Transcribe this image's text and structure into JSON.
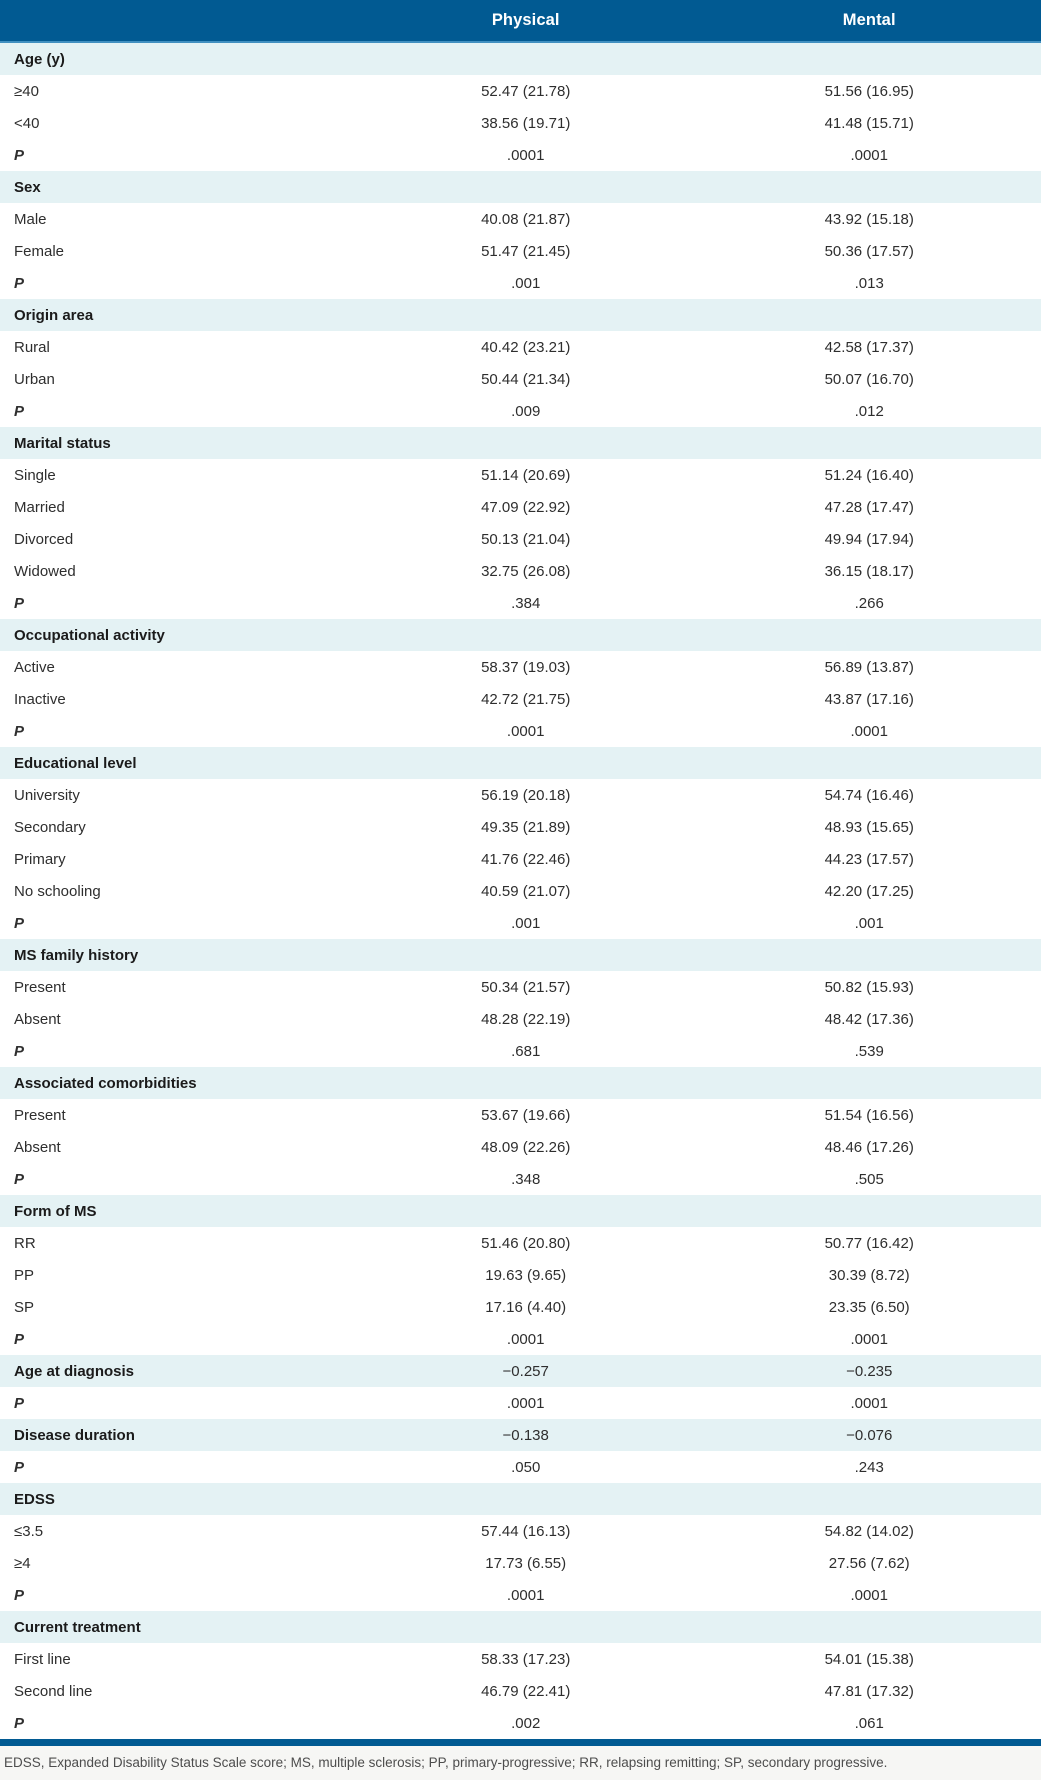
{
  "header": {
    "physical": "Physical",
    "mental": "Mental"
  },
  "sections": [
    {
      "title": "Age (y)",
      "rows": [
        {
          "type": "data",
          "label": "≥40",
          "physical": "52.47 (21.78)",
          "mental": "51.56 (16.95)"
        },
        {
          "type": "data",
          "label": "<40",
          "physical": "38.56 (19.71)",
          "mental": "41.48 (15.71)"
        },
        {
          "type": "p",
          "label": "P",
          "physical": ".0001",
          "mental": ".0001"
        }
      ]
    },
    {
      "title": "Sex",
      "rows": [
        {
          "type": "data",
          "label": "Male",
          "physical": "40.08 (21.87)",
          "mental": "43.92 (15.18)"
        },
        {
          "type": "data",
          "label": "Female",
          "physical": "51.47 (21.45)",
          "mental": "50.36 (17.57)"
        },
        {
          "type": "p",
          "label": "P",
          "physical": ".001",
          "mental": ".013"
        }
      ]
    },
    {
      "title": "Origin area",
      "rows": [
        {
          "type": "data",
          "label": "Rural",
          "physical": "40.42 (23.21)",
          "mental": "42.58 (17.37)"
        },
        {
          "type": "data",
          "label": "Urban",
          "physical": "50.44 (21.34)",
          "mental": "50.07 (16.70)"
        },
        {
          "type": "p",
          "label": "P",
          "physical": ".009",
          "mental": ".012"
        }
      ]
    },
    {
      "title": "Marital status",
      "rows": [
        {
          "type": "data",
          "label": "Single",
          "physical": "51.14 (20.69)",
          "mental": "51.24 (16.40)"
        },
        {
          "type": "data",
          "label": "Married",
          "physical": "47.09 (22.92)",
          "mental": "47.28 (17.47)"
        },
        {
          "type": "data",
          "label": "Divorced",
          "physical": "50.13 (21.04)",
          "mental": "49.94 (17.94)"
        },
        {
          "type": "data",
          "label": "Widowed",
          "physical": "32.75 (26.08)",
          "mental": "36.15 (18.17)"
        },
        {
          "type": "p",
          "label": "P",
          "physical": ".384",
          "mental": ".266"
        }
      ]
    },
    {
      "title": "Occupational activity",
      "rows": [
        {
          "type": "data",
          "label": "Active",
          "physical": "58.37 (19.03)",
          "mental": "56.89 (13.87)"
        },
        {
          "type": "data",
          "label": "Inactive",
          "physical": "42.72 (21.75)",
          "mental": "43.87 (17.16)"
        },
        {
          "type": "p",
          "label": "P",
          "physical": ".0001",
          "mental": ".0001"
        }
      ]
    },
    {
      "title": "Educational level",
      "rows": [
        {
          "type": "data",
          "label": "University",
          "physical": "56.19 (20.18)",
          "mental": "54.74 (16.46)"
        },
        {
          "type": "data",
          "label": "Secondary",
          "physical": "49.35 (21.89)",
          "mental": "48.93 (15.65)"
        },
        {
          "type": "data",
          "label": "Primary",
          "physical": "41.76 (22.46)",
          "mental": "44.23 (17.57)"
        },
        {
          "type": "data",
          "label": "No schooling",
          "physical": "40.59 (21.07)",
          "mental": "42.20 (17.25)"
        },
        {
          "type": "p",
          "label": "P",
          "physical": ".001",
          "mental": ".001"
        }
      ]
    },
    {
      "title": "MS family history",
      "rows": [
        {
          "type": "data",
          "label": "Present",
          "physical": "50.34 (21.57)",
          "mental": "50.82 (15.93)"
        },
        {
          "type": "data",
          "label": "Absent",
          "physical": "48.28 (22.19)",
          "mental": "48.42 (17.36)"
        },
        {
          "type": "p",
          "label": "P",
          "physical": ".681",
          "mental": ".539"
        }
      ]
    },
    {
      "title": "Associated comorbidities",
      "rows": [
        {
          "type": "data",
          "label": "Present",
          "physical": "53.67 (19.66)",
          "mental": "51.54 (16.56)"
        },
        {
          "type": "data",
          "label": "Absent",
          "physical": "48.09 (22.26)",
          "mental": "48.46 (17.26)"
        },
        {
          "type": "p",
          "label": "P",
          "physical": ".348",
          "mental": ".505"
        }
      ]
    },
    {
      "title": "Form of MS",
      "rows": [
        {
          "type": "data",
          "label": "RR",
          "physical": "51.46 (20.80)",
          "mental": "50.77 (16.42)"
        },
        {
          "type": "data",
          "label": "PP",
          "physical": "19.63 (9.65)",
          "mental": "30.39 (8.72)"
        },
        {
          "type": "data",
          "label": "SP",
          "physical": "17.16 (4.40)",
          "mental": "23.35 (6.50)"
        },
        {
          "type": "p",
          "label": "P",
          "physical": ".0001",
          "mental": ".0001"
        }
      ]
    },
    {
      "title": "Age at diagnosis",
      "physical": "−0.257",
      "mental": "−0.235",
      "rows": [
        {
          "type": "p",
          "label": "P",
          "physical": ".0001",
          "mental": ".0001"
        }
      ]
    },
    {
      "title": "Disease duration",
      "physical": "−0.138",
      "mental": "−0.076",
      "rows": [
        {
          "type": "p",
          "label": "P",
          "physical": ".050",
          "mental": ".243"
        }
      ]
    },
    {
      "title": "EDSS",
      "rows": [
        {
          "type": "data",
          "label": "≤3.5",
          "physical": "57.44 (16.13)",
          "mental": "54.82 (14.02)"
        },
        {
          "type": "data",
          "label": "≥4",
          "physical": "17.73 (6.55)",
          "mental": "27.56 (7.62)"
        },
        {
          "type": "p",
          "label": "P",
          "physical": ".0001",
          "mental": ".0001"
        }
      ]
    },
    {
      "title": "Current treatment",
      "rows": [
        {
          "type": "data",
          "label": "First line",
          "physical": "58.33 (17.23)",
          "mental": "54.01 (15.38)"
        },
        {
          "type": "data",
          "label": "Second line",
          "physical": "46.79 (22.41)",
          "mental": "47.81 (17.32)"
        },
        {
          "type": "p",
          "label": "P",
          "physical": ".002",
          "mental": ".061"
        }
      ]
    }
  ],
  "footnote": "EDSS, Expanded Disability Status Scale score; MS, multiple sclerosis; PP, primary-progressive; RR, relapsing remitting; SP, secondary progressive.",
  "colors": {
    "header_bg": "#015a92",
    "header_rule": "#4190c0",
    "section_bg": "#e4f2f4",
    "bottom_rule": "#015a92",
    "footnote_bg": "#f6f6f4"
  }
}
